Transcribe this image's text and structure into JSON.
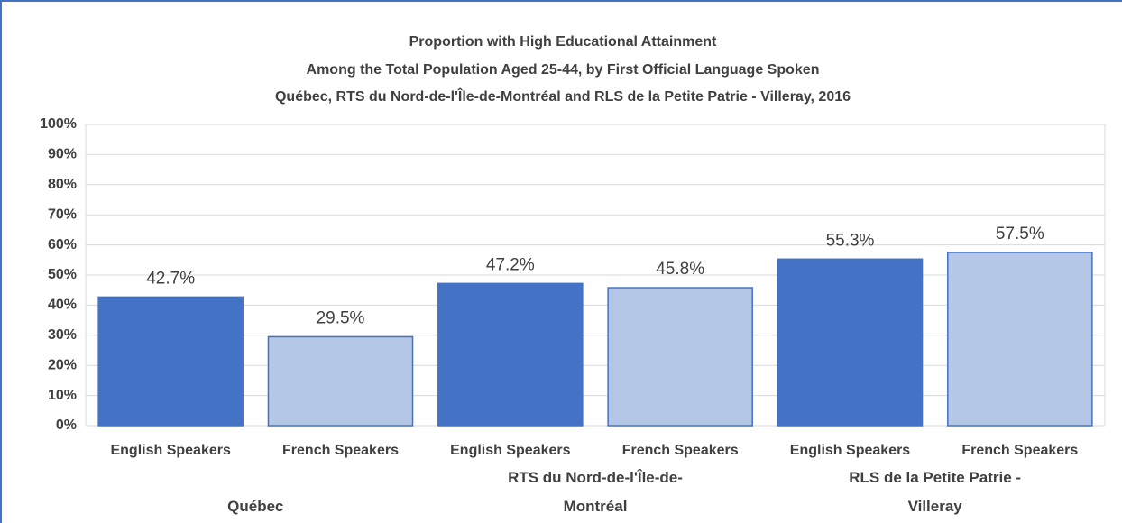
{
  "chart_data": {
    "type": "bar",
    "title": [
      "Proportion with High Educational Attainment",
      "Among the Total Population Aged 25-44, by First Official Language Spoken",
      "Québec, RTS du Nord-de-l'Île-de-Montréal and RLS de la Petite Patrie - Villeray, 2016"
    ],
    "categories": [
      "Québec",
      "RTS du Nord-de-l'Île-de-Montréal",
      "RLS de la Petite Patrie - Villeray"
    ],
    "series": [
      {
        "name": "English Speakers",
        "color": "#4472c4",
        "values": [
          42.7,
          47.2,
          55.3
        ],
        "value_labels": [
          "42.7%",
          "47.2%",
          "55.3%"
        ]
      },
      {
        "name": "French Speakers",
        "color": "#b4c7e7",
        "values": [
          29.5,
          45.8,
          57.5
        ],
        "value_labels": [
          "29.5%",
          "45.8%",
          "57.5%"
        ]
      }
    ],
    "ylim": [
      0,
      100
    ],
    "yticks": [
      {
        "value": 0,
        "label": "0%"
      },
      {
        "value": 10,
        "label": "10%"
      },
      {
        "value": 20,
        "label": "20%"
      },
      {
        "value": 30,
        "label": "30%"
      },
      {
        "value": 40,
        "label": "40%"
      },
      {
        "value": 50,
        "label": "50%"
      },
      {
        "value": 60,
        "label": "60%"
      },
      {
        "value": 70,
        "label": "70%"
      },
      {
        "value": 80,
        "label": "80%"
      },
      {
        "value": 90,
        "label": "90%"
      },
      {
        "value": 100,
        "label": "100%"
      }
    ],
    "grid": true
  }
}
